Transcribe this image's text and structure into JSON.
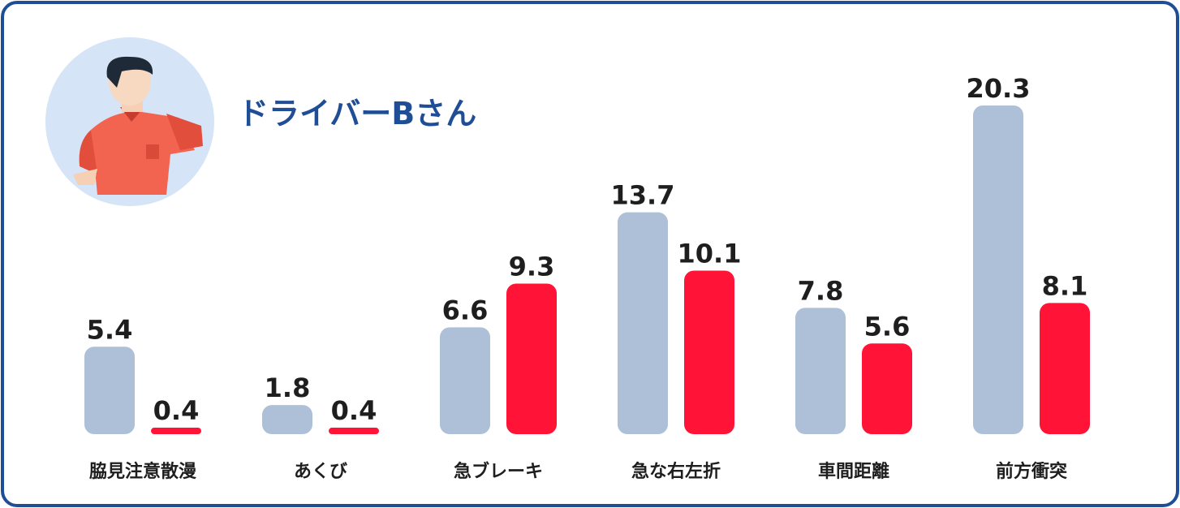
{
  "chart_data": {
    "type": "bar",
    "title": "ドライバーBさん",
    "categories": [
      "脇見注意散漫",
      "あくび",
      "急ブレーキ",
      "急な右左折",
      "車間距離",
      "前方衝突"
    ],
    "series": [
      {
        "color": "#adc0d7",
        "values": [
          5.4,
          1.8,
          6.6,
          13.7,
          7.8,
          20.3
        ]
      },
      {
        "color": "#ff1437",
        "values": [
          0.4,
          0.4,
          9.3,
          10.1,
          5.6,
          8.1
        ]
      }
    ]
  }
}
